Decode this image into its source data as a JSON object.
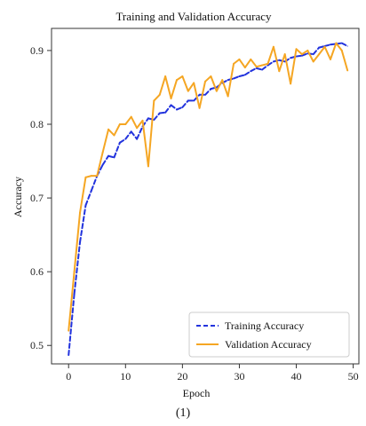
{
  "chart_data": {
    "type": "line",
    "title": "Training and Validation Accuracy",
    "xlabel": "Epoch",
    "ylabel": "Accuracy",
    "xlim": [
      -3,
      51
    ],
    "ylim": [
      0.475,
      0.93
    ],
    "xticks": [
      0,
      10,
      20,
      30,
      40,
      50
    ],
    "yticks": [
      0.5,
      0.6,
      0.7,
      0.8,
      0.9
    ],
    "grid": false,
    "legend_position": "lower-right",
    "x": [
      0,
      1,
      2,
      3,
      4,
      5,
      6,
      7,
      8,
      9,
      10,
      11,
      12,
      13,
      14,
      15,
      16,
      17,
      18,
      19,
      20,
      21,
      22,
      23,
      24,
      25,
      26,
      27,
      28,
      29,
      30,
      31,
      32,
      33,
      34,
      35,
      36,
      37,
      38,
      39,
      40,
      41,
      42,
      43,
      44,
      45,
      46,
      47,
      48,
      49
    ],
    "series": [
      {
        "name": "Training Accuracy",
        "color": "#2233dd",
        "style": "dashed",
        "values": [
          0.487,
          0.57,
          0.64,
          0.69,
          0.71,
          0.73,
          0.745,
          0.757,
          0.755,
          0.775,
          0.78,
          0.79,
          0.78,
          0.797,
          0.808,
          0.806,
          0.815,
          0.816,
          0.826,
          0.82,
          0.823,
          0.832,
          0.832,
          0.84,
          0.84,
          0.848,
          0.85,
          0.856,
          0.86,
          0.862,
          0.865,
          0.867,
          0.872,
          0.876,
          0.874,
          0.88,
          0.885,
          0.887,
          0.885,
          0.89,
          0.892,
          0.893,
          0.896,
          0.895,
          0.904,
          0.906,
          0.908,
          0.909,
          0.91,
          0.906
        ]
      },
      {
        "name": "Validation Accuracy",
        "color": "#f5a623",
        "style": "solid",
        "values": [
          0.52,
          0.6,
          0.68,
          0.728,
          0.73,
          0.73,
          0.762,
          0.793,
          0.785,
          0.8,
          0.8,
          0.81,
          0.795,
          0.805,
          0.743,
          0.832,
          0.84,
          0.865,
          0.835,
          0.86,
          0.865,
          0.845,
          0.856,
          0.822,
          0.858,
          0.865,
          0.845,
          0.86,
          0.838,
          0.882,
          0.888,
          0.877,
          0.888,
          0.878,
          0.88,
          0.882,
          0.905,
          0.872,
          0.895,
          0.855,
          0.902,
          0.895,
          0.9,
          0.885,
          0.895,
          0.905,
          0.888,
          0.91,
          0.9,
          0.873
        ]
      }
    ]
  },
  "caption": "(1)"
}
